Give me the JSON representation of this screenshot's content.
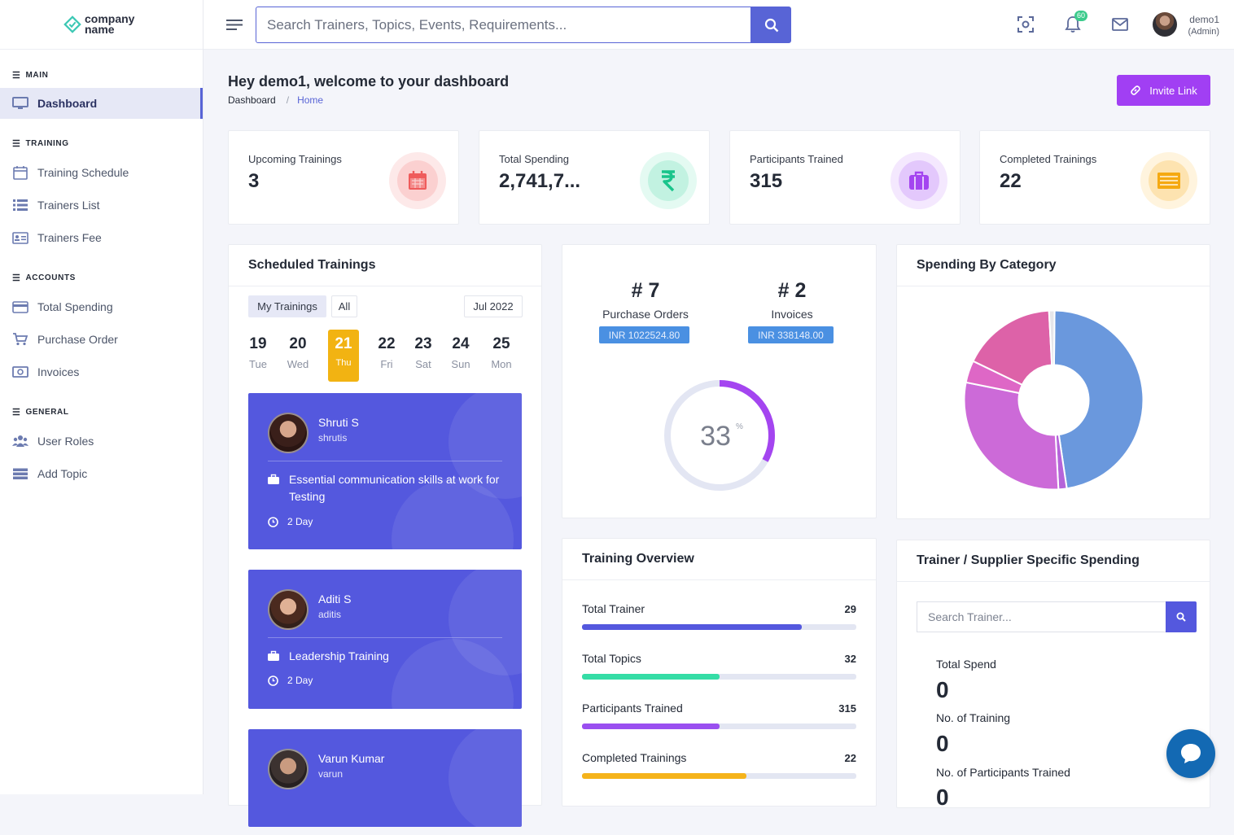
{
  "brand": {
    "line1": "company",
    "line2": "name"
  },
  "topbar": {
    "search_placeholder": "Search Trainers, Topics, Events, Requirements...",
    "notification_count": "60",
    "user_name": "demo1",
    "user_role": "(Admin)"
  },
  "sidebar": {
    "sections": [
      {
        "title": "MAIN"
      },
      {
        "title": "TRAINING"
      },
      {
        "title": "ACCOUNTS"
      },
      {
        "title": "GENERAL"
      }
    ],
    "items": [
      {
        "label": "Dashboard",
        "icon": "monitor-icon"
      },
      {
        "label": "Training Schedule",
        "icon": "calendar-icon"
      },
      {
        "label": "Trainers List",
        "icon": "list-icon"
      },
      {
        "label": "Trainers Fee",
        "icon": "id-card-icon"
      },
      {
        "label": "Total Spending",
        "icon": "credit-card-icon"
      },
      {
        "label": "Purchase Order",
        "icon": "cart-icon"
      },
      {
        "label": "Invoices",
        "icon": "money-icon"
      },
      {
        "label": "User Roles",
        "icon": "users-icon"
      },
      {
        "label": "Add Topic",
        "icon": "stack-icon"
      }
    ]
  },
  "header": {
    "welcome": "Hey demo1, welcome to your dashboard",
    "breadcrumb": [
      "Dashboard",
      "Home"
    ],
    "invite_label": "Invite Link"
  },
  "stats": [
    {
      "label": "Upcoming Trainings",
      "value": "3",
      "icon": "calendar-icon",
      "color": "#ef5b5b"
    },
    {
      "label": "Total Spending",
      "value": "2,741,7...",
      "icon": "rupee-icon",
      "color": "#2ed5a0"
    },
    {
      "label": "Participants Trained",
      "value": "315",
      "icon": "briefcase-icon",
      "color": "#a445f0"
    },
    {
      "label": "Completed Trainings",
      "value": "22",
      "icon": "list-card-icon",
      "color": "#f5b01e"
    }
  ],
  "scheduled": {
    "title": "Scheduled Trainings",
    "filters": [
      "My Trainings",
      "All"
    ],
    "month": "Jul 2022",
    "days": [
      {
        "n": "19",
        "w": "Tue"
      },
      {
        "n": "20",
        "w": "Wed"
      },
      {
        "n": "21",
        "w": "Thu",
        "selected": true
      },
      {
        "n": "22",
        "w": "Fri"
      },
      {
        "n": "23",
        "w": "Sat"
      },
      {
        "n": "24",
        "w": "Sun"
      },
      {
        "n": "25",
        "w": "Mon"
      }
    ],
    "trainings": [
      {
        "name": "Shruti S",
        "user": "shrutis",
        "topic": "Essential communication skills at work for Testing",
        "duration": "2 Day"
      },
      {
        "name": "Aditi S",
        "user": "aditis",
        "topic": "Leadership Training",
        "duration": "2 Day"
      },
      {
        "name": "Varun Kumar",
        "user": "varun"
      }
    ]
  },
  "orders": {
    "purchase": {
      "num": "# 7",
      "label": "Purchase Orders",
      "amount": "INR 1022524.80"
    },
    "invoices": {
      "num": "# 2",
      "label": "Invoices",
      "amount": "INR 338148.00"
    },
    "progress": {
      "value": "33",
      "unit": "%",
      "fraction": 0.33
    }
  },
  "spending": {
    "title": "Spending By Category",
    "chart_data": {
      "type": "pie",
      "slices": [
        {
          "value": 47.5,
          "color": "#6a98dd"
        },
        {
          "value": 1.5,
          "color": "#b564d9"
        },
        {
          "value": 29,
          "color": "#cc6ad8"
        },
        {
          "value": 4,
          "color": "#de67c6"
        },
        {
          "value": 17,
          "color": "#dd62a8"
        },
        {
          "value": 1,
          "color": "#e6e6ea"
        }
      ]
    }
  },
  "overview": {
    "title": "Training Overview",
    "rows": [
      {
        "label": "Total Trainer",
        "value": "29",
        "fill": 0.8,
        "color": "#5458de"
      },
      {
        "label": "Total Topics",
        "value": "32",
        "fill": 0.5,
        "color": "#35dda6"
      },
      {
        "label": "Participants Trained",
        "value": "315",
        "fill": 0.5,
        "color": "#9a4ff0"
      },
      {
        "label": "Completed Trainings",
        "value": "22",
        "fill": 0.6,
        "color": "#f5b31b"
      }
    ]
  },
  "trainer_spend": {
    "title": "Trainer / Supplier Specific Spending",
    "search_placeholder": "Search Trainer...",
    "items": [
      {
        "label": "Total Spend",
        "value": "0"
      },
      {
        "label": "No. of Training",
        "value": "0"
      },
      {
        "label": "No. of Participants Trained",
        "value": "0"
      }
    ]
  }
}
